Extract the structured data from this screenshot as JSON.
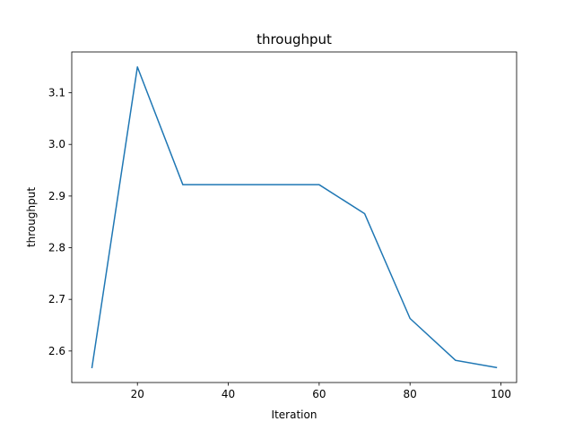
{
  "chart_data": {
    "type": "line",
    "title": "throughput",
    "xlabel": "Iteration",
    "ylabel": "throughput",
    "xlim": [
      5.55,
      103.45
    ],
    "ylim": [
      2.539,
      3.179
    ],
    "xticks": [
      20,
      40,
      60,
      80,
      100
    ],
    "yticks": [
      2.6,
      2.7,
      2.8,
      2.9,
      3.0,
      3.1
    ],
    "xtick_labels": [
      "20",
      "40",
      "60",
      "80",
      "100"
    ],
    "ytick_labels": [
      "2.6",
      "2.7",
      "2.8",
      "2.9",
      "3.0",
      "3.1"
    ],
    "grid": false,
    "series": [
      {
        "color": "#1f77b4",
        "x": [
          10,
          20,
          30,
          40,
          50,
          60,
          70,
          80,
          90,
          99
        ],
        "y": [
          2.568,
          3.15,
          2.922,
          2.922,
          2.922,
          2.922,
          2.866,
          2.663,
          2.582,
          2.568
        ]
      }
    ]
  }
}
